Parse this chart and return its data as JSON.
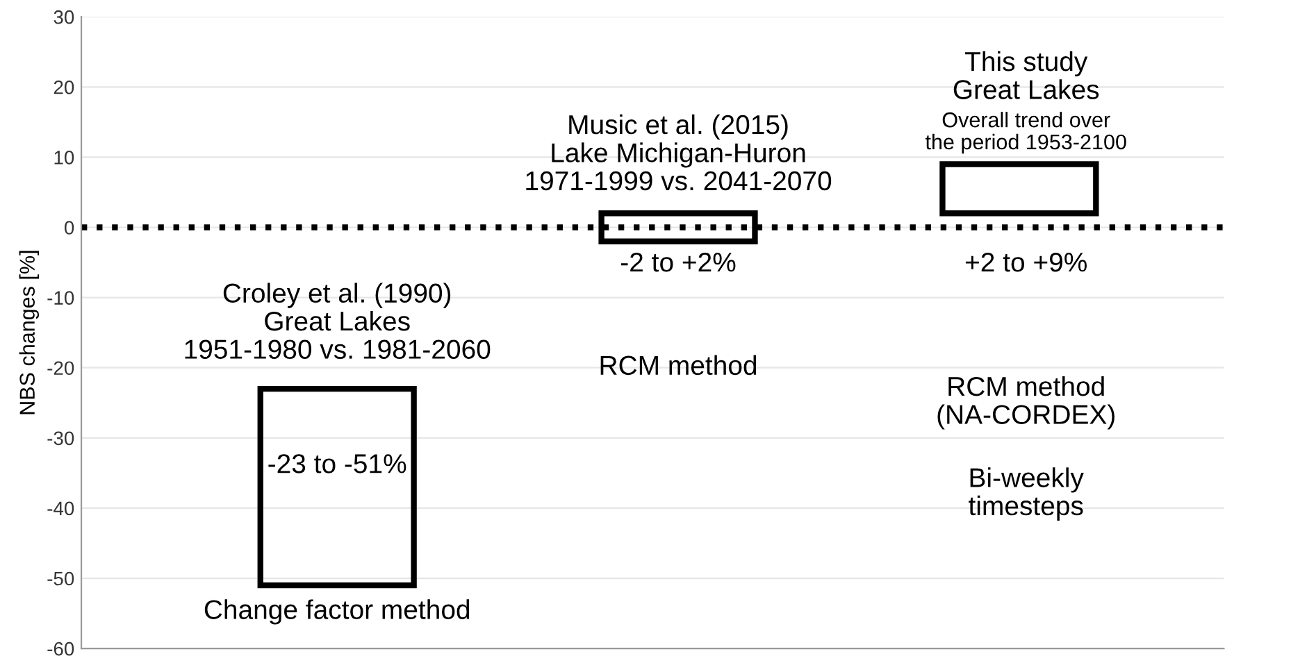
{
  "chart_data": {
    "type": "bar",
    "categories": [
      null,
      null,
      null
    ],
    "base": [
      -51,
      -2,
      2
    ],
    "values": [
      28,
      4,
      7
    ],
    "color": "#000000",
    "ylabel": "NBS changes [%]",
    "ylim": [
      -60,
      30
    ],
    "yticks": [
      -60,
      -50,
      -40,
      -30,
      -20,
      -10,
      0,
      10,
      20,
      30
    ],
    "grid": "y",
    "tick_labels": "y",
    "ref_lines": [
      {
        "axis": "y",
        "value": 0,
        "color": "#000000",
        "line_style": "dotted"
      }
    ],
    "annotations": [
      "Croley et al. (1990)\nGreat Lakes\n1951-1980 vs. 1981-2060",
      "-23 to -51%",
      "Change factor method",
      "Music et al. (2015)\nLake Michigan-Huron\n1971-1999 vs. 2041-2070",
      "-2 to +2%",
      "RCM method",
      "This study\nGreat Lakes",
      "Overall trend over\nthe period 1953-2100",
      "+2 to +9%",
      "RCM method\n(NA-CORDEX)",
      "Bi-weekly\ntimesteps"
    ]
  }
}
